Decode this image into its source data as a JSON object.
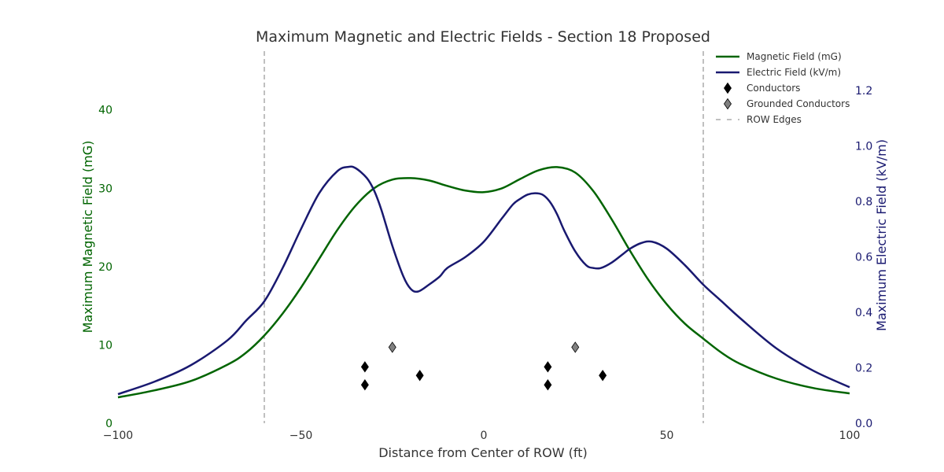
{
  "chart_data": {
    "type": "line",
    "title": "Maximum Magnetic and Electric Fields - Section 18 Proposed",
    "xlabel": "Distance from Center of ROW (ft)",
    "ylabel_left": "Maximum Magnetic Field (mG)",
    "ylabel_right": "Maximum Electric Field (kV/m)",
    "xlim": [
      -100,
      100
    ],
    "ylim_left": [
      0,
      46
    ],
    "ylim_right": [
      0,
      1.3
    ],
    "x_ticks": [
      -100,
      -50,
      0,
      50,
      100
    ],
    "x_tick_labels": [
      "−100",
      "−50",
      "0",
      "50",
      "100"
    ],
    "y_ticks_left": [
      0,
      10,
      20,
      30,
      40
    ],
    "y_tick_labels_left": [
      "0",
      "10",
      "20",
      "30",
      "40"
    ],
    "y_ticks_right": [
      0.0,
      0.2,
      0.4,
      0.6,
      0.8,
      1.0,
      1.2
    ],
    "y_tick_labels_right": [
      "0.0",
      "0.2",
      "0.4",
      "0.6",
      "0.8",
      "1.0",
      "1.2"
    ],
    "grid": false,
    "legend_position": "top-right",
    "colors": {
      "magnetic": "#006400",
      "electric": "#191970",
      "conductor": "#000000",
      "grounded": "#808080",
      "row_edge": "#808080"
    },
    "series": [
      {
        "name": "Magnetic Field (mG)",
        "axis": "left",
        "x": [
          -100,
          -90,
          -80,
          -70,
          -65,
          -60,
          -55,
          -50,
          -45,
          -40,
          -35,
          -30,
          -25,
          -20,
          -15,
          -10,
          -5,
          0,
          5,
          10,
          15,
          20,
          25,
          30,
          35,
          40,
          45,
          50,
          55,
          60,
          65,
          70,
          80,
          90,
          100
        ],
        "y": [
          3.3,
          4.2,
          5.4,
          7.5,
          9.0,
          11.2,
          14.0,
          17.3,
          21.0,
          24.7,
          27.8,
          30.0,
          31.1,
          31.3,
          31.0,
          30.3,
          29.7,
          29.5,
          30.0,
          31.2,
          32.3,
          32.7,
          32.0,
          29.6,
          26.0,
          22.0,
          18.3,
          15.2,
          12.7,
          10.8,
          9.0,
          7.6,
          5.7,
          4.5,
          3.8
        ]
      },
      {
        "name": "Electric Field (kV/m)",
        "axis": "right",
        "x": [
          -100,
          -90,
          -80,
          -70,
          -65,
          -60,
          -55,
          -50,
          -45,
          -40,
          -37,
          -35,
          -32,
          -30,
          -28,
          -25,
          -22,
          -20,
          -18,
          -15,
          -12,
          -10,
          -5,
          0,
          5,
          8,
          10,
          12,
          14,
          16,
          18,
          20,
          22,
          25,
          28,
          30,
          32,
          35,
          38,
          40,
          43,
          46,
          50,
          55,
          60,
          65,
          70,
          80,
          90,
          100
        ],
        "y": [
          0.105,
          0.15,
          0.21,
          0.3,
          0.37,
          0.44,
          0.56,
          0.7,
          0.83,
          0.91,
          0.925,
          0.92,
          0.885,
          0.84,
          0.77,
          0.64,
          0.53,
          0.485,
          0.475,
          0.5,
          0.53,
          0.56,
          0.6,
          0.655,
          0.74,
          0.79,
          0.81,
          0.825,
          0.83,
          0.825,
          0.8,
          0.755,
          0.695,
          0.62,
          0.57,
          0.56,
          0.56,
          0.58,
          0.61,
          0.63,
          0.65,
          0.655,
          0.63,
          0.57,
          0.5,
          0.44,
          0.38,
          0.27,
          0.19,
          0.13
        ]
      }
    ],
    "conductors": {
      "name": "Conductors",
      "axis": "left",
      "points": [
        [
          -32.5,
          7.2
        ],
        [
          -32.5,
          4.9
        ],
        [
          -17.5,
          6.1
        ],
        [
          17.5,
          7.2
        ],
        [
          17.5,
          4.9
        ],
        [
          32.5,
          6.1
        ]
      ]
    },
    "grounded_conductors": {
      "name": "Grounded Conductors",
      "axis": "left",
      "points": [
        [
          -25,
          9.7
        ],
        [
          25,
          9.7
        ]
      ]
    },
    "row_edges": {
      "name": "ROW Edges",
      "x": [
        -60,
        60
      ]
    },
    "legend": [
      {
        "label": "Magnetic Field (mG)",
        "kind": "line",
        "color": "#006400"
      },
      {
        "label": "Electric Field (kV/m)",
        "kind": "line",
        "color": "#191970"
      },
      {
        "label": "Conductors",
        "kind": "diamond",
        "color": "#000000"
      },
      {
        "label": "Grounded Conductors",
        "kind": "diamond",
        "color": "#808080"
      },
      {
        "label": "ROW Edges",
        "kind": "dash",
        "color": "#808080"
      }
    ]
  }
}
